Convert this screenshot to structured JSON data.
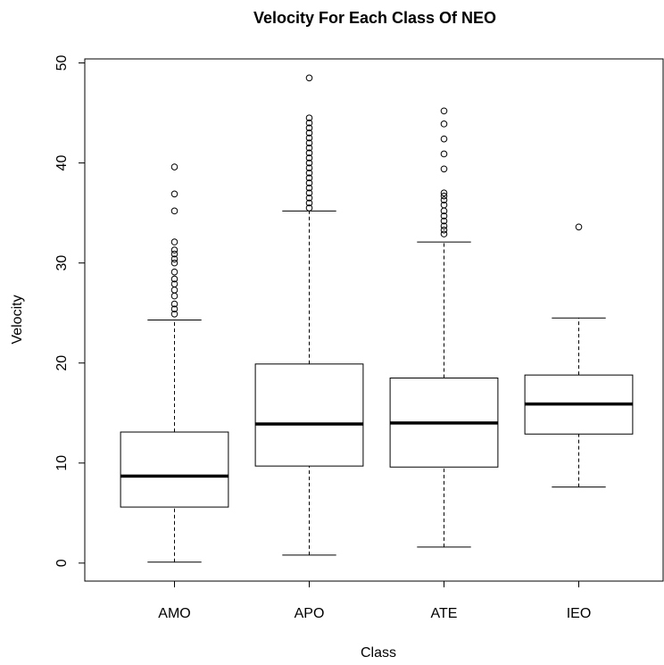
{
  "chart_data": {
    "type": "box",
    "title": "Velocity For Each Class Of NEO",
    "x_label": "Class",
    "y_label": "Velocity",
    "categories": [
      "AMO",
      "APO",
      "ATE",
      "IEO"
    ],
    "boxes": [
      {
        "whislo": 0.1,
        "q1": 5.6,
        "med": 8.7,
        "q3": 13.1,
        "whishi": 24.3,
        "outliers": [
          39.6,
          36.9,
          35.2,
          32.1,
          31.3,
          30.9,
          30.4,
          30.0,
          29.1,
          28.4,
          27.9,
          27.3,
          26.7,
          25.9,
          25.4,
          24.9
        ]
      },
      {
        "whislo": 0.8,
        "q1": 9.7,
        "med": 13.9,
        "q3": 19.9,
        "whishi": 35.2,
        "outliers": [
          48.5,
          44.5,
          44.0,
          43.5,
          43.0,
          42.5,
          42.0,
          41.5,
          41.0,
          40.5,
          40.0,
          39.5,
          39.0,
          38.5,
          38.0,
          37.5,
          37.0,
          36.5,
          36.0,
          35.5
        ]
      },
      {
        "whislo": 1.6,
        "q1": 9.6,
        "med": 14.0,
        "q3": 18.5,
        "whishi": 32.1,
        "outliers": [
          45.2,
          43.9,
          42.4,
          40.9,
          39.4,
          37.0,
          36.7,
          36.3,
          35.8,
          35.2,
          34.7,
          34.2,
          33.7,
          33.3,
          32.9
        ]
      },
      {
        "whislo": 7.6,
        "q1": 12.9,
        "med": 15.9,
        "q3": 18.8,
        "whishi": 24.5,
        "outliers": [
          33.6
        ]
      }
    ],
    "ylim": [
      -1.8,
      50.4
    ],
    "yticks": [
      0,
      10,
      20,
      30,
      40,
      50
    ],
    "color": "#000000"
  }
}
